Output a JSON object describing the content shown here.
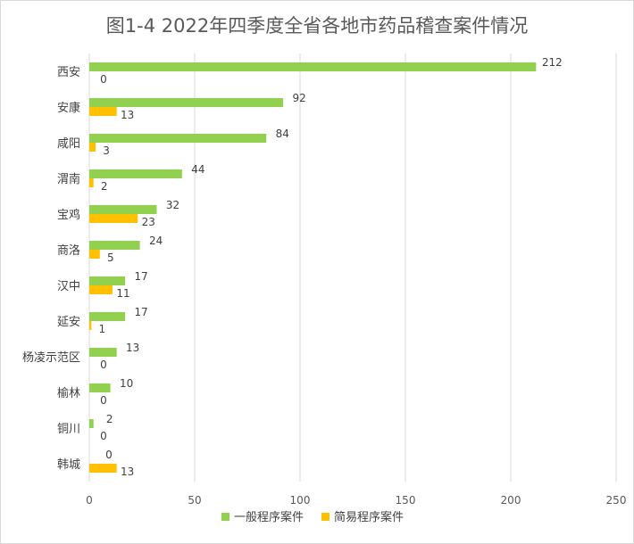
{
  "chart_data": {
    "type": "bar",
    "orientation": "horizontal",
    "title": "图1-4  2022年四季度全省各地市药品稽查案件情况",
    "categories": [
      "西安",
      "安康",
      "咸阳",
      "渭南",
      "宝鸡",
      "商洛",
      "汉中",
      "延安",
      "杨凌示范区",
      "榆林",
      "铜川",
      "韩城"
    ],
    "series": [
      {
        "name": "一般程序案件",
        "color": "#92D050",
        "values": [
          212,
          92,
          84,
          44,
          32,
          24,
          17,
          17,
          13,
          10,
          2,
          0
        ]
      },
      {
        "name": "简易程序案件",
        "color": "#FFC000",
        "values": [
          0,
          13,
          3,
          2,
          23,
          5,
          11,
          1,
          0,
          0,
          0,
          13
        ]
      }
    ],
    "xlim": [
      0,
      250
    ],
    "xticks": [
      0,
      50,
      100,
      150,
      200,
      250
    ],
    "grid": true,
    "legend_position": "bottom",
    "data_labels": true
  }
}
